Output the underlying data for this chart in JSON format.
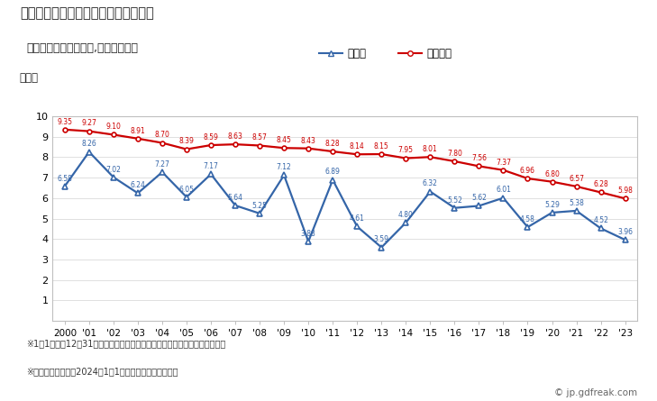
{
  "title": "川本町の人口千人当たり出生数の推移",
  "subtitle": "（住民基本台帳ベース,日本人住民）",
  "ylabel": "（人）",
  "years": [
    2000,
    2001,
    2002,
    2003,
    2004,
    2005,
    2006,
    2007,
    2008,
    2009,
    2010,
    2011,
    2012,
    2013,
    2014,
    2015,
    2016,
    2017,
    2018,
    2019,
    2020,
    2021,
    2022,
    2023
  ],
  "xlabels": [
    "2000",
    "'01",
    "'02",
    "'03",
    "'04",
    "'05",
    "'06",
    "'07",
    "'08",
    "'09",
    "'10",
    "'11",
    "'12",
    "'13",
    "'14",
    "'15",
    "'16",
    "'17",
    "'18",
    "'19",
    "'20",
    "'21",
    "'22",
    "'23"
  ],
  "kawamoto": [
    6.58,
    8.26,
    7.02,
    6.24,
    7.27,
    6.05,
    7.17,
    5.64,
    5.25,
    7.12,
    3.88,
    6.89,
    4.61,
    3.59,
    4.8,
    6.32,
    5.52,
    5.62,
    6.01,
    4.58,
    5.29,
    5.38,
    4.52,
    3.96
  ],
  "national": [
    9.35,
    9.27,
    9.1,
    8.91,
    8.7,
    8.39,
    8.59,
    8.63,
    8.57,
    8.45,
    8.43,
    8.28,
    8.14,
    8.15,
    7.95,
    8.01,
    7.8,
    7.56,
    7.37,
    6.96,
    6.8,
    6.57,
    6.28,
    5.98
  ],
  "kawamoto_color": "#3465a8",
  "national_color": "#cc0000",
  "kawamoto_label": "川本町",
  "national_label": "全国平均",
  "ylim": [
    0,
    10
  ],
  "yticks": [
    1,
    2,
    3,
    4,
    5,
    6,
    7,
    8,
    9,
    10
  ],
  "footnote1": "※1月1日から12月31日までの外国人を除く日本人住民の千人当たり出生数。",
  "footnote2": "※市区町村の場合は2024年1月1日時点の市区町村境界。",
  "watermark": "© jp.gdfreak.com",
  "bg_color": "#ffffff",
  "plot_bg_color": "#ffffff",
  "border_color": "#c0c0c0"
}
